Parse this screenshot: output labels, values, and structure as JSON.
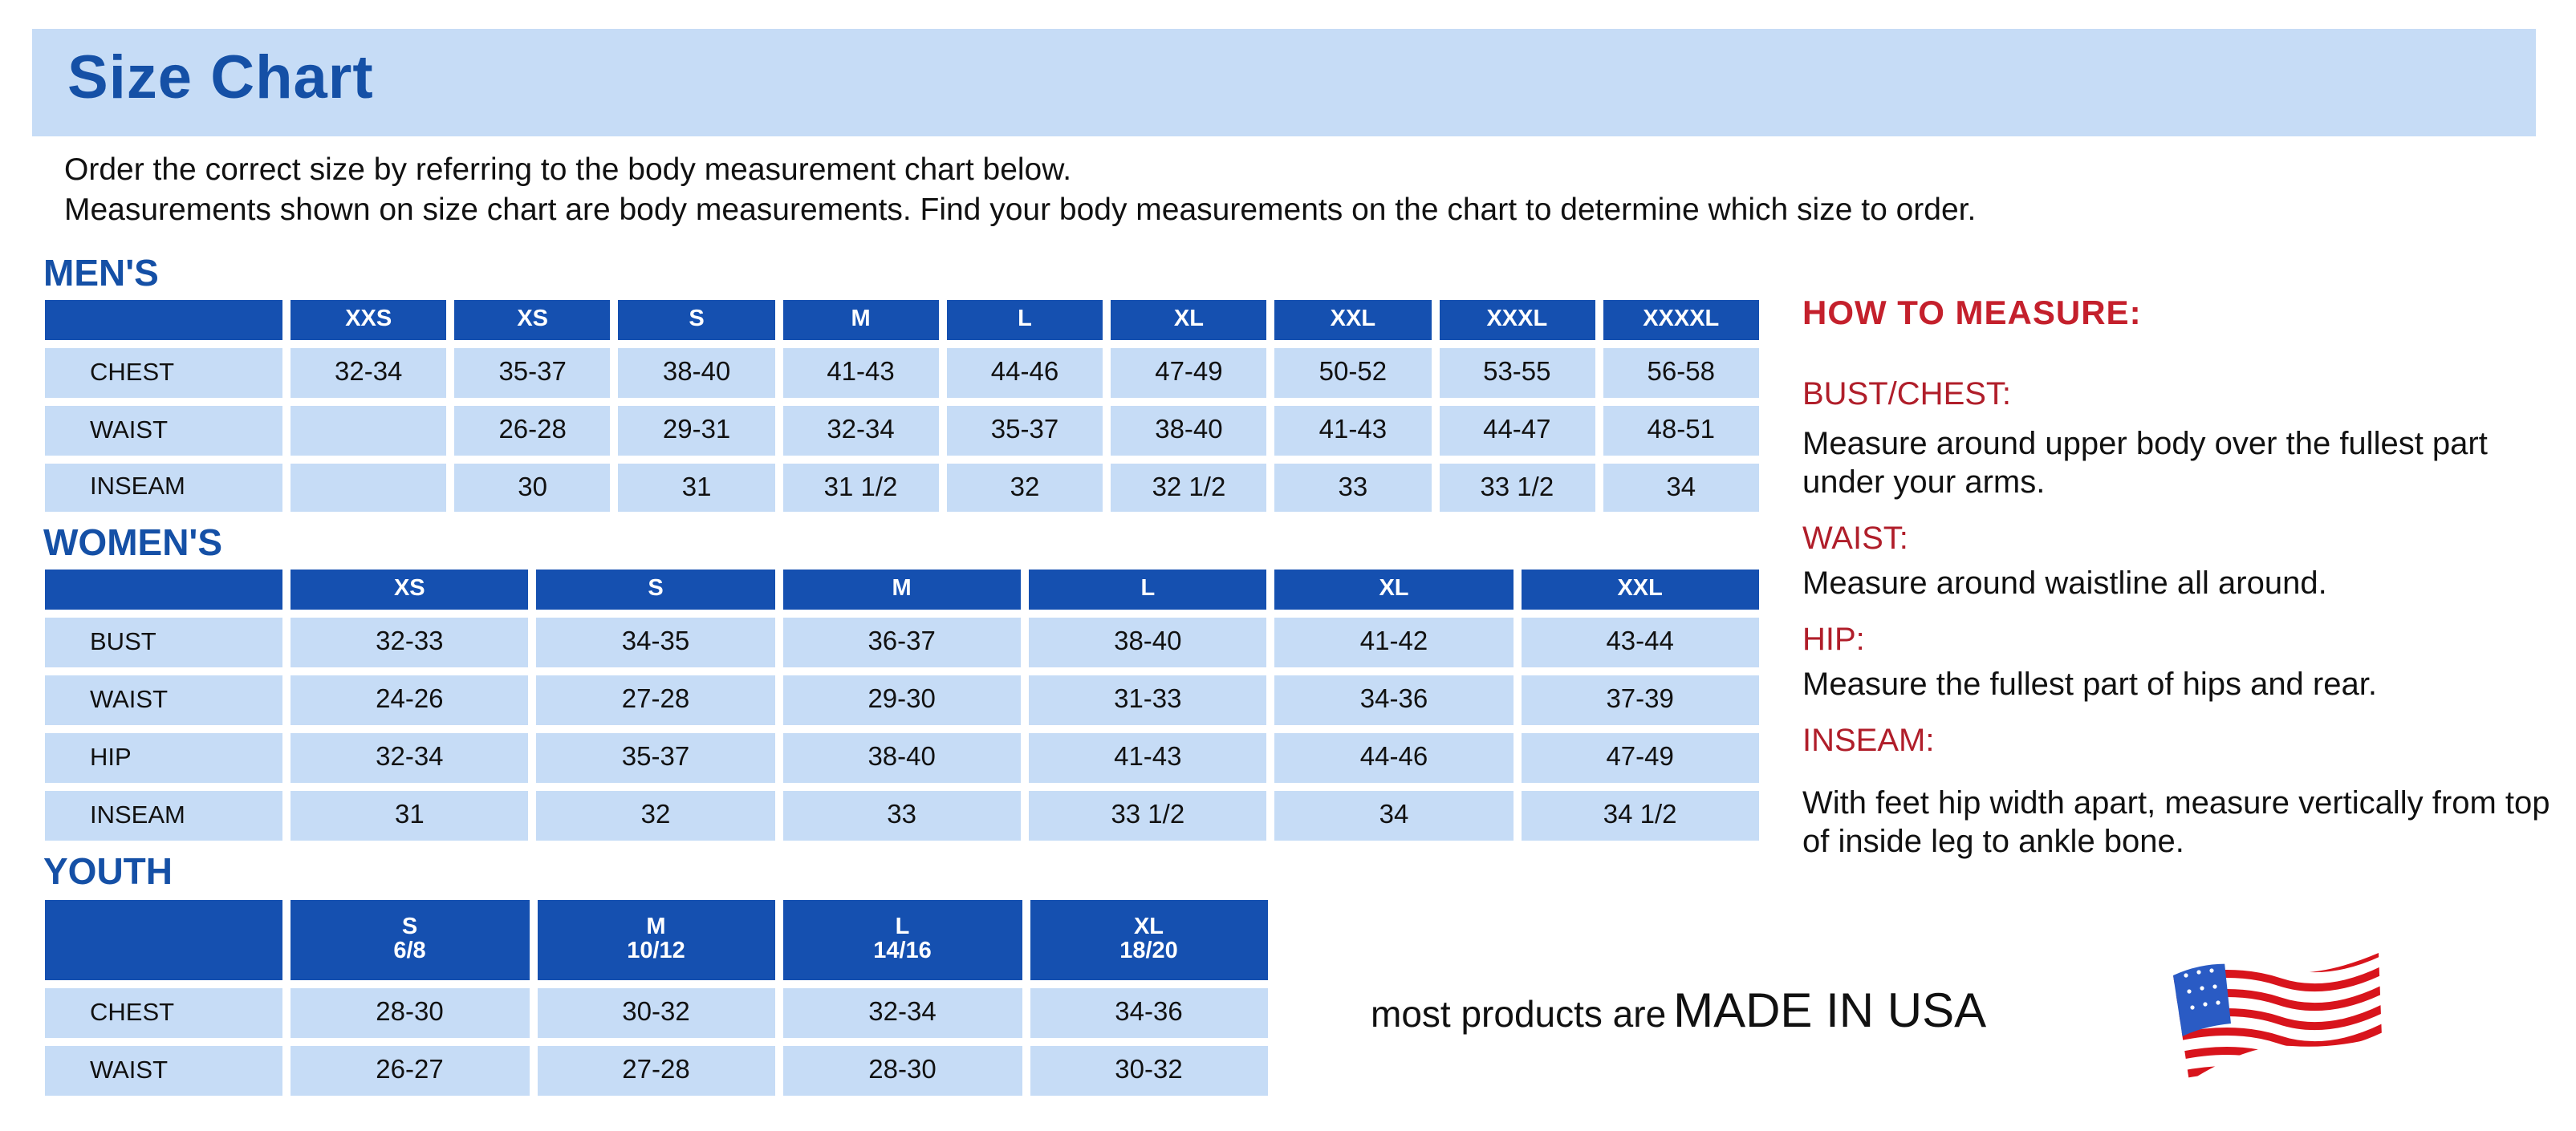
{
  "header": {
    "title": "Size Chart"
  },
  "intro": [
    "Order the correct size by referring to the body measurement chart below.",
    "Measurements shown on size chart are body measurements.  Find your body measurements on the chart to determine which size to order."
  ],
  "mens": {
    "title": "MEN'S",
    "sizes": [
      "XXS",
      "XS",
      "S",
      "M",
      "L",
      "XL",
      "XXL",
      "XXXL",
      "XXXXL"
    ],
    "rows": [
      {
        "label": "CHEST",
        "values": [
          "32-34",
          "35-37",
          "38-40",
          "41-43",
          "44-46",
          "47-49",
          "50-52",
          "53-55",
          "56-58"
        ]
      },
      {
        "label": "WAIST",
        "values": [
          "",
          "26-28",
          "29-31",
          "32-34",
          "35-37",
          "38-40",
          "41-43",
          "44-47",
          "48-51"
        ]
      },
      {
        "label": "INSEAM",
        "values": [
          "",
          "30",
          "31",
          "31 1/2",
          "32",
          "32 1/2",
          "33",
          "33 1/2",
          "34"
        ]
      }
    ]
  },
  "womens": {
    "title": "WOMEN'S",
    "sizes": [
      "XS",
      "S",
      "M",
      "L",
      "XL",
      "XXL"
    ],
    "rows": [
      {
        "label": "BUST",
        "values": [
          "32-33",
          "34-35",
          "36-37",
          "38-40",
          "41-42",
          "43-44"
        ]
      },
      {
        "label": "WAIST",
        "values": [
          "24-26",
          "27-28",
          "29-30",
          "31-33",
          "34-36",
          "37-39"
        ]
      },
      {
        "label": "HIP",
        "values": [
          "32-34",
          "35-37",
          "38-40",
          "41-43",
          "44-46",
          "47-49"
        ]
      },
      {
        "label": "INSEAM",
        "values": [
          "31",
          "32",
          "33",
          "33 1/2",
          "34",
          "34 1/2"
        ]
      }
    ]
  },
  "youth": {
    "title": "YOUTH",
    "sizes": [
      {
        "size": "S",
        "range": "6/8"
      },
      {
        "size": "M",
        "range": "10/12"
      },
      {
        "size": "L",
        "range": "14/16"
      },
      {
        "size": "XL",
        "range": "18/20"
      }
    ],
    "rows": [
      {
        "label": "CHEST",
        "values": [
          "28-30",
          "30-32",
          "32-34",
          "34-36"
        ]
      },
      {
        "label": "WAIST",
        "values": [
          "26-27",
          "27-28",
          "28-30",
          "30-32"
        ]
      }
    ]
  },
  "how_to_measure": {
    "title": "HOW TO MEASURE:",
    "items": [
      {
        "heading": "BUST/CHEST:",
        "text": "Measure around upper body over the fullest part under your arms."
      },
      {
        "heading": "WAIST:",
        "text": "Measure around waistline all around."
      },
      {
        "heading": "HIP:",
        "text": "Measure the fullest part of hips and rear."
      },
      {
        "heading": "INSEAM:",
        "text": "With feet hip width apart, measure vertically from top of inside leg to ankle bone."
      }
    ]
  },
  "footer": {
    "prefix": "most products are",
    "emphasis": "MADE IN USA",
    "flag_icon": "us-flag-icon"
  },
  "colors": {
    "header_band": "#c6dcf6",
    "title_blue": "#1550a6",
    "table_header": "#1550b0",
    "cell": "#c6dcf6",
    "measure_red": "#c4202c"
  }
}
